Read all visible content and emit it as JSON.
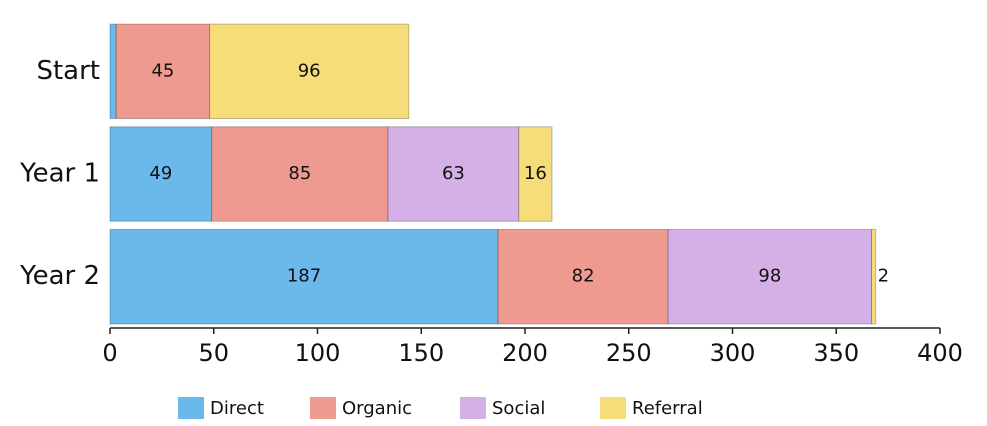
{
  "chart_data": {
    "type": "stacked-bar",
    "orientation": "horizontal",
    "categories": [
      "Start",
      "Year 1",
      "Year 2"
    ],
    "series": [
      {
        "name": "Direct",
        "color": "#6bb8ea",
        "values": [
          3,
          49,
          187
        ]
      },
      {
        "name": "Organic",
        "color": "#ee9a90",
        "values": [
          45,
          85,
          82
        ]
      },
      {
        "name": "Social",
        "color": "#d5b0e6",
        "values": [
          null,
          63,
          98
        ]
      },
      {
        "name": "Referral",
        "color": "#f7dc7a",
        "values": [
          96,
          16,
          2
        ]
      }
    ],
    "xlim": [
      0,
      400
    ],
    "xticks": [
      0,
      50,
      100,
      150,
      200,
      250,
      300,
      350,
      400
    ],
    "legend": "bottom"
  }
}
